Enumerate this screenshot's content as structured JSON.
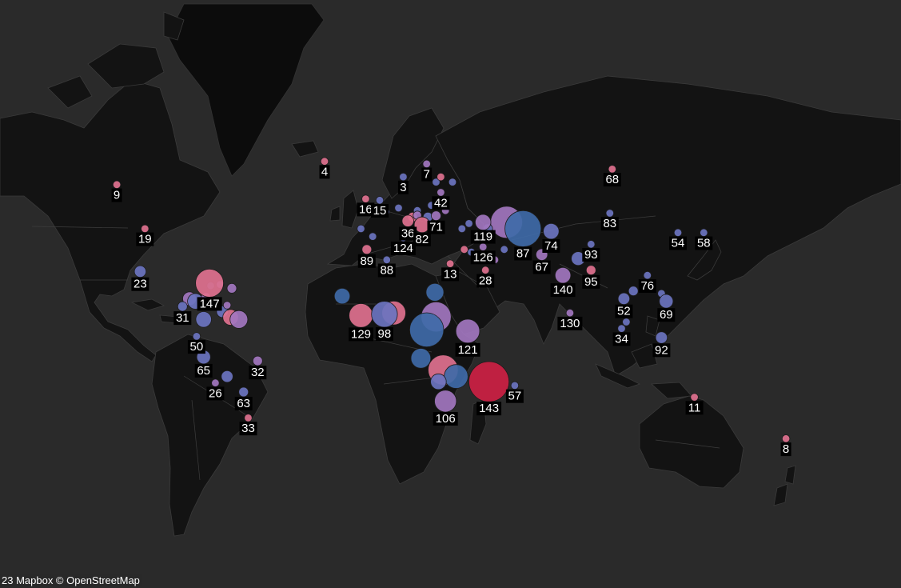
{
  "attribution": "23 Mapbox © OpenStreetMap",
  "colors": {
    "background": "#2a2a2a",
    "land": "#131313",
    "label_bg": "#000000",
    "label_text": "#ffffff",
    "marker_scale": [
      "#cc1f43",
      "#e0718f",
      "#a276bf",
      "#6b74c0",
      "#3f6aa8"
    ]
  },
  "map_points": [
    {
      "label": "4",
      "lon": -23.5,
      "lat": 66,
      "size": 1,
      "color": "#e0718f"
    },
    {
      "label": "9",
      "lon": -112,
      "lat": 57,
      "size": 1,
      "color": "#e0718f"
    },
    {
      "label": "7",
      "lon": 20,
      "lat": 65,
      "size": 1,
      "color": "#a276bf"
    },
    {
      "label": "68",
      "lon": 99,
      "lat": 63,
      "size": 1,
      "color": "#e0718f"
    },
    {
      "label": "3",
      "lon": 10,
      "lat": 60,
      "size": 1,
      "color": "#6b74c0"
    },
    {
      "label": "42",
      "lon": 26,
      "lat": 54,
      "size": 1,
      "color": "#a276bf"
    },
    {
      "label": "16",
      "lon": -6,
      "lat": 51.5,
      "size": 1,
      "color": "#e0718f"
    },
    {
      "label": "15",
      "lon": 0,
      "lat": 51,
      "size": 1,
      "color": "#6b74c0"
    },
    {
      "label": "71",
      "lon": 24,
      "lat": 45,
      "size": 1.5,
      "color": "#a276bf"
    },
    {
      "label": "36",
      "lon": 12,
      "lat": 43,
      "size": 2,
      "color": "#e0718f"
    },
    {
      "label": "82",
      "lon": 18,
      "lat": 41.5,
      "size": 3,
      "color": "#e0718f"
    },
    {
      "label": "119",
      "lon": 44,
      "lat": 42.5,
      "size": 3,
      "color": "#a276bf"
    },
    {
      "label": "87",
      "lon": 61,
      "lat": 40,
      "size": 8,
      "color": "#3f6aa8"
    },
    {
      "label": "74",
      "lon": 73,
      "lat": 39,
      "size": 3,
      "color": "#6b74c0"
    },
    {
      "label": "83",
      "lon": 98,
      "lat": 46,
      "size": 1,
      "color": "#6b74c0"
    },
    {
      "label": "54",
      "lon": 127,
      "lat": 38.5,
      "size": 1,
      "color": "#6b74c0"
    },
    {
      "label": "58",
      "lon": 138,
      "lat": 38.5,
      "size": 1,
      "color": "#6b74c0"
    },
    {
      "label": "19",
      "lon": -100,
      "lat": 40,
      "size": 1,
      "color": "#e0718f"
    },
    {
      "label": "124",
      "lon": 10,
      "lat": 36.5,
      "size": 1,
      "color": "#6b74c0"
    },
    {
      "label": "89",
      "lon": -5.5,
      "lat": 32,
      "size": 1.5,
      "color": "#e0718f"
    },
    {
      "label": "88",
      "lon": 3,
      "lat": 28,
      "size": 1,
      "color": "#6b74c0"
    },
    {
      "label": "13",
      "lon": 30,
      "lat": 26.5,
      "size": 1,
      "color": "#e0718f"
    },
    {
      "label": "126",
      "lon": 44,
      "lat": 33,
      "size": 1,
      "color": "#a276bf"
    },
    {
      "label": "28",
      "lon": 45,
      "lat": 24,
      "size": 1,
      "color": "#e0718f"
    },
    {
      "label": "67",
      "lon": 69,
      "lat": 30,
      "size": 2,
      "color": "#a276bf"
    },
    {
      "label": "93",
      "lon": 90,
      "lat": 34,
      "size": 1,
      "color": "#6b74c0"
    },
    {
      "label": "95",
      "lon": 90,
      "lat": 24,
      "size": 1.5,
      "color": "#e0718f"
    },
    {
      "label": "140",
      "lon": 78,
      "lat": 22,
      "size": 3,
      "color": "#a276bf"
    },
    {
      "label": "52",
      "lon": 104,
      "lat": 13,
      "size": 2,
      "color": "#6b74c0"
    },
    {
      "label": "76",
      "lon": 114,
      "lat": 22,
      "size": 1,
      "color": "#6b74c0"
    },
    {
      "label": "69",
      "lon": 122,
      "lat": 12,
      "size": 2.5,
      "color": "#6b74c0"
    },
    {
      "label": "130",
      "lon": 81,
      "lat": 7.5,
      "size": 1,
      "color": "#a276bf"
    },
    {
      "label": "34",
      "lon": 103,
      "lat": 1.5,
      "size": 1,
      "color": "#6b74c0"
    },
    {
      "label": "92",
      "lon": 120,
      "lat": -2,
      "size": 2,
      "color": "#6b74c0"
    },
    {
      "label": "11",
      "lon": 134,
      "lat": -25,
      "size": 1,
      "color": "#e0718f"
    },
    {
      "label": "8",
      "lon": 173,
      "lat": -41,
      "size": 1,
      "color": "#e0718f"
    },
    {
      "label": "23",
      "lon": -102,
      "lat": 23.5,
      "size": 2,
      "color": "#6b74c0"
    },
    {
      "label": "147",
      "lon": -72.5,
      "lat": 19,
      "size": 6,
      "color": "#e0718f"
    },
    {
      "label": "31",
      "lon": -84,
      "lat": 10,
      "size": 1.5,
      "color": "#6b74c0"
    },
    {
      "label": "50",
      "lon": -78,
      "lat": -1.5,
      "size": 1,
      "color": "#6b74c0"
    },
    {
      "label": "65",
      "lon": -75,
      "lat": -9.5,
      "size": 2.5,
      "color": "#6b74c0"
    },
    {
      "label": "26",
      "lon": -70,
      "lat": -19.5,
      "size": 1,
      "color": "#a276bf"
    },
    {
      "label": "63",
      "lon": -58,
      "lat": -23,
      "size": 1.5,
      "color": "#6b74c0"
    },
    {
      "label": "32",
      "lon": -52,
      "lat": -11,
      "size": 1.5,
      "color": "#a276bf"
    },
    {
      "label": "33",
      "lon": -56,
      "lat": -33,
      "size": 1,
      "color": "#e0718f"
    },
    {
      "label": "129",
      "lon": -8,
      "lat": 6.5,
      "size": 5,
      "color": "#e0718f"
    },
    {
      "label": "98",
      "lon": 2,
      "lat": 7,
      "size": 5.5,
      "color": "#6b74c0"
    },
    {
      "label": "121",
      "lon": 37.5,
      "lat": 0.5,
      "size": 5,
      "color": "#a276bf"
    },
    {
      "label": "106",
      "lon": 28,
      "lat": -26.5,
      "size": 4.5,
      "color": "#a276bf"
    },
    {
      "label": "143",
      "lon": 46.5,
      "lat": -19,
      "size": 9,
      "color": "#cc1f43"
    },
    {
      "label": "57",
      "lon": 57.5,
      "lat": -20.5,
      "size": 1,
      "color": "#6b74c0"
    }
  ],
  "unlabeled_points": [
    {
      "lon": -81,
      "lat": 13,
      "size": 2.5,
      "color": "#a276bf"
    },
    {
      "lon": -78.5,
      "lat": 12,
      "size": 3,
      "color": "#6b74c0"
    },
    {
      "lon": -74,
      "lat": 13.5,
      "size": 1.5,
      "color": "#a276bf"
    },
    {
      "lon": -75,
      "lat": 5,
      "size": 3,
      "color": "#6b74c0"
    },
    {
      "lon": -67,
      "lat": 8,
      "size": 2,
      "color": "#6b74c0"
    },
    {
      "lon": -63.5,
      "lat": 5.8,
      "size": 3,
      "color": "#e0718f"
    },
    {
      "lon": -60,
      "lat": 5,
      "size": 3.5,
      "color": "#a276bf"
    },
    {
      "lon": -65,
      "lat": 10.5,
      "size": 1,
      "color": "#a276bf"
    },
    {
      "lon": -68,
      "lat": 18.5,
      "size": 1,
      "color": "#6b74c0"
    },
    {
      "lon": -72,
      "lat": 18,
      "size": 1,
      "color": "#3f6aa8"
    },
    {
      "lon": -63,
      "lat": 17,
      "size": 1.5,
      "color": "#a276bf"
    },
    {
      "lon": -65,
      "lat": -17,
      "size": 2,
      "color": "#6b74c0"
    },
    {
      "lon": -16,
      "lat": 14,
      "size": 3,
      "color": "#3f6aa8"
    },
    {
      "lon": 23.5,
      "lat": 15.5,
      "size": 3.5,
      "color": "#3f6aa8"
    },
    {
      "lon": 6,
      "lat": 7.5,
      "size": 5,
      "color": "#e0718f"
    },
    {
      "lon": 24,
      "lat": 6,
      "size": 6.5,
      "color": "#a276bf"
    },
    {
      "lon": 20,
      "lat": 1,
      "size": 7.5,
      "color": "#3f6aa8"
    },
    {
      "lon": 17.5,
      "lat": -10,
      "size": 4,
      "color": "#3f6aa8"
    },
    {
      "lon": 27,
      "lat": -14.5,
      "size": 6.5,
      "color": "#e0718f"
    },
    {
      "lon": 32.5,
      "lat": -17,
      "size": 5,
      "color": "#3f6aa8"
    },
    {
      "lon": 25,
      "lat": -19,
      "size": 3,
      "color": "#6b74c0"
    },
    {
      "lon": 54,
      "lat": 42.5,
      "size": 7,
      "color": "#a276bf"
    },
    {
      "lon": 38,
      "lat": 42,
      "size": 1,
      "color": "#6b74c0"
    },
    {
      "lon": 84.5,
      "lat": 28.5,
      "size": 2.5,
      "color": "#6b74c0"
    },
    {
      "lon": 108,
      "lat": 16,
      "size": 1.5,
      "color": "#6b74c0"
    },
    {
      "lon": 105,
      "lat": 4,
      "size": 1,
      "color": "#6b74c0"
    },
    {
      "lon": 124,
      "lat": 6,
      "size": 1,
      "color": "#a276bf"
    },
    {
      "lon": 8,
      "lat": 48,
      "size": 1,
      "color": "#6b74c0"
    },
    {
      "lon": 2.5,
      "lat": 46.5,
      "size": 1,
      "color": "#6b74c0"
    },
    {
      "lon": 16,
      "lat": 47,
      "size": 1,
      "color": "#6b74c0"
    },
    {
      "lon": 22,
      "lat": 49,
      "size": 1,
      "color": "#6b74c0"
    },
    {
      "lon": 14,
      "lat": 44.5,
      "size": 1.5,
      "color": "#e0718f"
    },
    {
      "lon": 16,
      "lat": 45.2,
      "size": 1.2,
      "color": "#a276bf"
    },
    {
      "lon": 20.5,
      "lat": 44.5,
      "size": 1.5,
      "color": "#6b74c0"
    },
    {
      "lon": 28,
      "lat": 47,
      "size": 1,
      "color": "#a276bf"
    },
    {
      "lon": 35,
      "lat": 40,
      "size": 1,
      "color": "#6b74c0"
    },
    {
      "lon": 31,
      "lat": 58,
      "size": 1,
      "color": "#6b74c0"
    },
    {
      "lon": 24,
      "lat": 58,
      "size": 1,
      "color": "#6b74c0"
    },
    {
      "lon": 26,
      "lat": 60,
      "size": 1,
      "color": "#e0718f"
    },
    {
      "lon": 46,
      "lat": 40,
      "size": 1.5,
      "color": "#6b74c0"
    },
    {
      "lon": 53,
      "lat": 32,
      "size": 1,
      "color": "#6b74c0"
    },
    {
      "lon": 39,
      "lat": 31,
      "size": 1,
      "color": "#6b74c0"
    },
    {
      "lon": 36,
      "lat": 32,
      "size": 1,
      "color": "#e0718f"
    },
    {
      "lon": 49,
      "lat": 28,
      "size": 1,
      "color": "#a276bf"
    },
    {
      "lon": -8,
      "lat": 40,
      "size": 1,
      "color": "#6b74c0"
    },
    {
      "lon": -3,
      "lat": 37,
      "size": 1,
      "color": "#6b74c0"
    },
    {
      "lon": 120,
      "lat": 15,
      "size": 1,
      "color": "#6b74c0"
    }
  ]
}
